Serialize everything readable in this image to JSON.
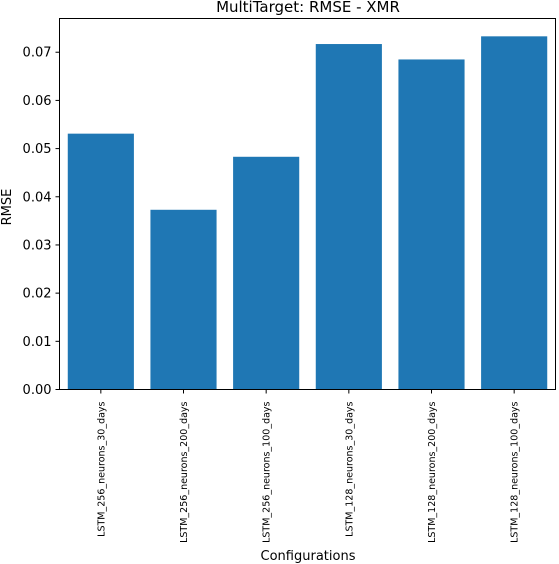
{
  "chart_data": {
    "type": "bar",
    "title": "MultiTarget: RMSE - XMR",
    "xlabel": "Configurations",
    "ylabel": "RMSE",
    "categories": [
      "LSTM_256_neurons_30_days",
      "LSTM_256_neurons_200_days",
      "LSTM_256_neurons_100_days",
      "LSTM_128_neurons_30_days",
      "LSTM_128_neurons_200_days",
      "LSTM_128_neurons_100_days"
    ],
    "values": [
      0.0531,
      0.0373,
      0.0483,
      0.0717,
      0.0685,
      0.0733
    ],
    "ylim": [
      0,
      0.077
    ],
    "yticks": [
      0.0,
      0.01,
      0.02,
      0.03,
      0.04,
      0.05,
      0.06,
      0.07
    ],
    "ytick_labels": [
      "0.00",
      "0.01",
      "0.02",
      "0.03",
      "0.04",
      "0.05",
      "0.06",
      "0.07"
    ],
    "grid": false,
    "bar_color": "#1f77b4"
  }
}
